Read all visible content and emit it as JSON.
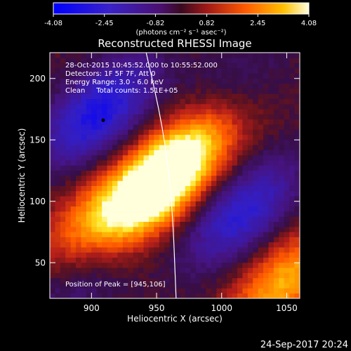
{
  "chart_data": {
    "type": "heatmap",
    "colorbar": {
      "ticks": [
        "-4.08",
        "-2.45",
        "-0.82",
        "0.82",
        "2.45",
        "4.08"
      ],
      "range": [
        -4.08,
        4.08
      ],
      "units_label": "(photons cm⁻² s⁻¹ asec⁻²)"
    },
    "title": "Reconstructed RHESSI Image",
    "xlabel": "Heliocentric X (arcsec)",
    "ylabel": "Heliocentric Y (arcsec)",
    "xlim": [
      868,
      1060
    ],
    "ylim": [
      21,
      221
    ],
    "xticks": [
      900,
      950,
      1000,
      1050
    ],
    "yticks": [
      50,
      100,
      150,
      200
    ],
    "annotations": {
      "time_range": "28-Oct-2015 10:45:52.000 to 10:55:52.000",
      "detectors": "Detectors: 1F 5F 7F, Att 0",
      "energy_range": "Energy Range: 3.0 - 6.0 keV",
      "method": "Clean     Total counts: 1.51E+05",
      "peak": "Position of Peak = [945,106]"
    },
    "peak_position": [
      945,
      106
    ],
    "features": [
      {
        "kind": "positive",
        "x": 945,
        "y": 105,
        "amplitude": 4.0
      },
      {
        "kind": "positive",
        "x": 972,
        "y": 140,
        "amplitude": 3.3
      },
      {
        "kind": "positive",
        "x": 900,
        "y": 85,
        "amplitude": 2.0
      },
      {
        "kind": "positive",
        "x": 1048,
        "y": 35,
        "amplitude": 3.0
      },
      {
        "kind": "negative",
        "x": 905,
        "y": 172,
        "amplitude": -3.3
      },
      {
        "kind": "negative",
        "x": 1015,
        "y": 90,
        "amplitude": -2.8
      },
      {
        "kind": "negative",
        "x": 1005,
        "y": 190,
        "amplitude": -1.0
      },
      {
        "kind": "negative",
        "x": 890,
        "y": 35,
        "amplitude": -1.1
      }
    ],
    "marker_point": [
      909,
      166
    ],
    "limb_curve": [
      [
        942,
        221
      ],
      [
        955,
        160
      ],
      [
        962,
        100
      ],
      [
        965,
        21
      ]
    ]
  },
  "footer_timestamp": "24-Sep-2017 20:24"
}
